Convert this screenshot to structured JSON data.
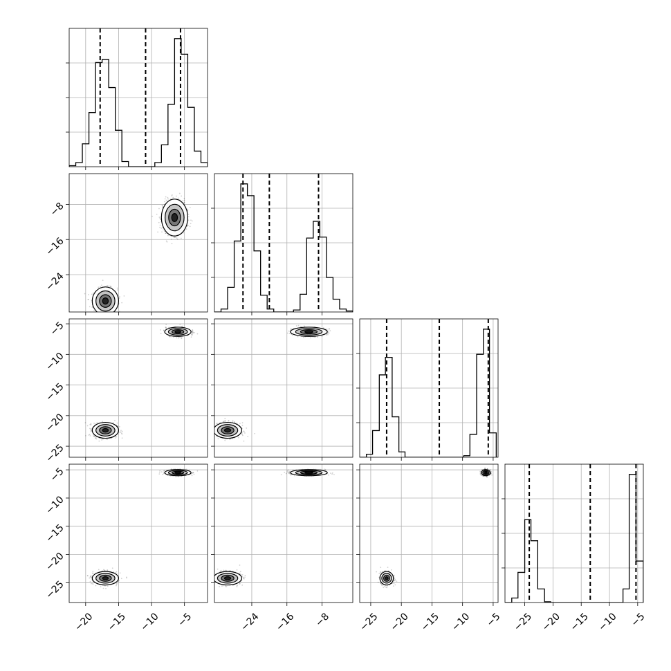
{
  "chart_data": {
    "type": "corner",
    "dims": 4,
    "grid": true,
    "quantiles_dashed": [
      [
        -17.8,
        -10.9,
        -5.6
      ],
      [
        -26.0,
        -20.0,
        -8.8
      ],
      [
        -22.4,
        -13.8,
        -5.8
      ],
      [
        -24.2,
        -13.4,
        -5.3
      ]
    ],
    "axis_ranges": [
      [
        -22.5,
        -1.5
      ],
      [
        -32.5,
        -1.0
      ],
      [
        -26.8,
        -4.2
      ],
      [
        -28.5,
        -4.0
      ]
    ],
    "x_ticks": [
      {
        "values": [
          -20,
          -15,
          -10,
          -5
        ],
        "labels": [
          "−20",
          "−15",
          "−10",
          "−5"
        ]
      },
      {
        "values": [
          -24,
          -16,
          -8
        ],
        "labels": [
          "−24",
          "−16",
          "−8"
        ]
      },
      {
        "values": [
          -25,
          -20,
          -15,
          -10,
          -5
        ],
        "labels": [
          "−25",
          "−20",
          "−15",
          "−10",
          "−5"
        ]
      },
      {
        "values": [
          -25,
          -20,
          -15,
          -10,
          -5
        ],
        "labels": [
          "−25",
          "−20",
          "−15",
          "−10",
          "−5"
        ]
      }
    ],
    "y_ticks": [
      null,
      {
        "values": [
          -8,
          -16,
          -24
        ],
        "labels": [
          "−8",
          "−16",
          "−24"
        ]
      },
      {
        "values": [
          -5,
          -10,
          -15,
          -20,
          -25
        ],
        "labels": [
          "−5",
          "−10",
          "−15",
          "−20",
          "−25"
        ]
      },
      {
        "values": [
          -5,
          -10,
          -15,
          -20,
          -25
        ],
        "labels": [
          "−5",
          "−10",
          "−15",
          "−20",
          "−25"
        ]
      }
    ],
    "histograms": [
      {
        "bins": [
          -22.5,
          -21.5,
          -20.5,
          -19.5,
          -18.5,
          -17.5,
          -16.5,
          -15.5,
          -14.5,
          -13.5,
          -12.5,
          -11.5,
          -10.5,
          -9.5,
          -8.5,
          -7.5,
          -6.5,
          -5.5,
          -4.5,
          -3.5,
          -2.5,
          -1.5
        ],
        "counts": [
          1,
          4,
          22,
          52,
          100,
          103,
          76,
          35,
          5,
          0,
          0,
          0,
          0,
          4,
          21,
          60,
          123,
          108,
          57,
          15,
          4
        ]
      },
      {
        "bins": [
          -32.5,
          -31.0,
          -29.5,
          -28.0,
          -26.5,
          -25.0,
          -23.5,
          -22.0,
          -20.5,
          -19.0,
          -17.5,
          -16.0,
          -14.5,
          -13.0,
          -11.5,
          -10.0,
          -8.5,
          -7.0,
          -5.5,
          -4.0,
          -2.5,
          -1.0
        ],
        "counts": [
          0,
          3,
          25,
          72,
          130,
          118,
          62,
          17,
          3,
          0,
          0,
          0,
          2,
          18,
          75,
          92,
          76,
          35,
          13,
          3,
          1
        ]
      },
      {
        "bins": [
          -26.8,
          -25.7,
          -24.7,
          -23.6,
          -22.6,
          -21.5,
          -20.4,
          -19.4,
          -18.3,
          -17.2,
          -16.2,
          -15.1,
          -14.1,
          -13.0,
          -11.9,
          -10.9,
          -9.8,
          -8.8,
          -7.7,
          -6.6,
          -5.6,
          -4.5
        ],
        "counts": [
          0,
          4,
          35,
          108,
          131,
          53,
          7,
          0,
          0,
          0,
          0,
          0,
          0,
          0,
          0,
          0,
          2,
          30,
          135,
          168,
          32
        ]
      },
      {
        "bins": [
          -28.5,
          -27.3,
          -26.2,
          -25.0,
          -23.9,
          -22.7,
          -21.5,
          -20.4,
          -19.2,
          -18.1,
          -16.9,
          -15.7,
          -14.6,
          -13.4,
          -12.3,
          -11.1,
          -10.0,
          -8.8,
          -7.6,
          -6.5,
          -5.3,
          -4.0
        ],
        "counts": [
          0,
          6,
          40,
          110,
          82,
          18,
          1,
          0,
          0,
          0,
          0,
          0,
          0,
          0,
          0,
          0,
          0,
          0,
          18,
          170,
          55
        ]
      }
    ],
    "clusters": [
      [
        -17.0,
        -30.0,
        2.0,
        3.2
      ],
      [
        -6.5,
        -11.0,
        2.0,
        4.2
      ],
      [
        -17.0,
        -22.4,
        2.0,
        1.3
      ],
      [
        -6.0,
        -6.3,
        2.0,
        0.75
      ],
      [
        -17.0,
        -24.2,
        2.0,
        1.2
      ],
      [
        -6.0,
        -5.5,
        2.0,
        0.55
      ],
      [
        -29.5,
        -22.4,
        3.2,
        1.3
      ],
      [
        -11.0,
        -6.3,
        4.2,
        0.75
      ],
      [
        -29.5,
        -24.2,
        3.2,
        1.2
      ],
      [
        -11.0,
        -5.5,
        4.2,
        0.55
      ],
      [
        -22.4,
        -24.2,
        1.1,
        1.2
      ],
      [
        -6.2,
        -5.5,
        0.7,
        0.55
      ]
    ]
  }
}
